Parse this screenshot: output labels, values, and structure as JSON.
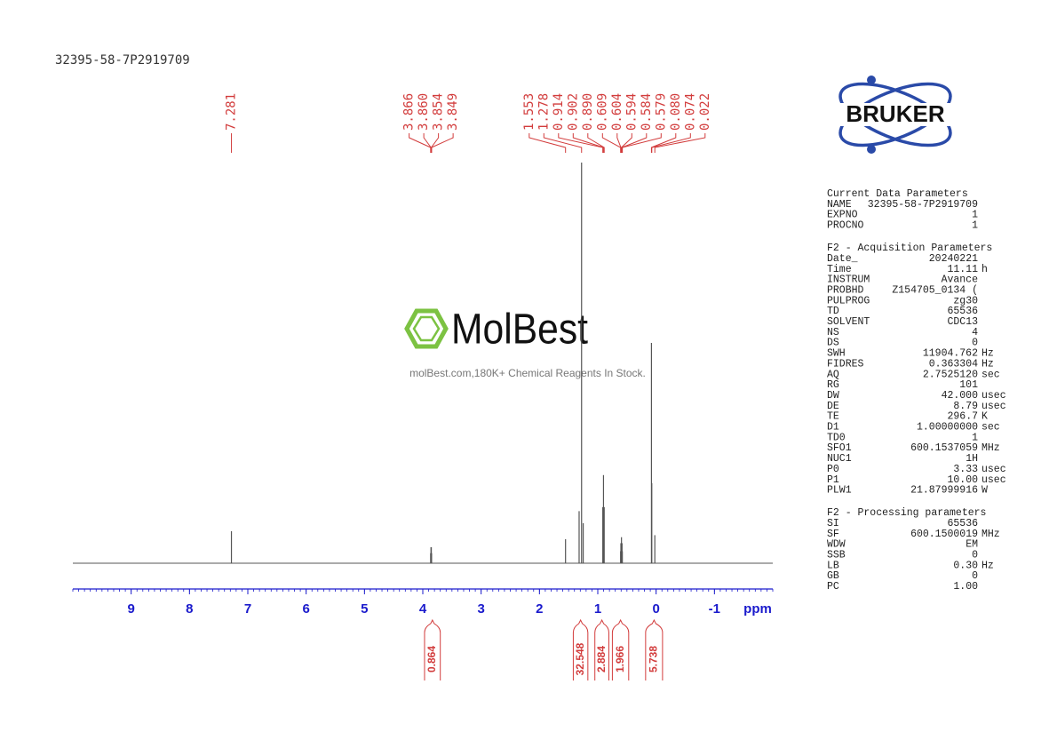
{
  "chart_data": {
    "type": "nmr",
    "title": "32395-58-7P2919709",
    "x_label": "ppm",
    "xlim": [
      10,
      -2
    ],
    "xticks": [
      9,
      8,
      7,
      6,
      5,
      4,
      3,
      2,
      1,
      0,
      -1
    ],
    "minor_tick_step": 0.1,
    "ylim": [
      0,
      100
    ],
    "axis_color": "#1a1acc",
    "spectrum": {
      "color": "#555555",
      "ppm": [
        7.281,
        3.866,
        3.86,
        3.854,
        3.849,
        1.553,
        1.32,
        1.278,
        1.25,
        0.914,
        0.902,
        0.89,
        0.609,
        0.604,
        0.594,
        0.584,
        0.579,
        0.08,
        0.074,
        0.022
      ],
      "intensity": [
        8,
        2.5,
        4,
        4,
        2.5,
        6,
        13,
        100,
        10,
        14,
        22,
        14,
        3,
        5,
        6.5,
        5,
        3,
        55,
        20,
        7
      ]
    },
    "peaks": {
      "color": "#d23c3c",
      "values": [
        7.281,
        3.866,
        3.86,
        3.854,
        3.849,
        1.553,
        1.278,
        0.914,
        0.902,
        0.89,
        0.609,
        0.604,
        0.594,
        0.584,
        0.579,
        0.08,
        0.074,
        0.022
      ],
      "value_labels": [
        "7.281",
        "3.866",
        "3.860",
        "3.854",
        "3.849",
        "1.553",
        "1.278",
        "0.914",
        "0.902",
        "0.890",
        "0.609",
        "0.604",
        "0.594",
        "0.584",
        "0.579",
        "0.080",
        "0.074",
        "0.022"
      ]
    },
    "integrals": {
      "color": "#d23c3c",
      "ranges": [
        [
          3.97,
          3.7
        ],
        [
          1.42,
          1.17
        ],
        [
          1.05,
          0.81
        ],
        [
          0.75,
          0.47
        ],
        [
          0.18,
          -0.11
        ]
      ],
      "values": [
        0.864,
        32.548,
        2.884,
        1.966,
        5.738
      ]
    }
  },
  "logo": {
    "text": "BRUKER"
  },
  "watermark": {
    "brand": "MolBest",
    "tagline": "molBest.com,180K+ Chemical Reagents In Stock."
  },
  "parameters": {
    "sections": [
      {
        "title": "Current Data Parameters",
        "rows": [
          {
            "name": "NAME",
            "value": "32395-58-7P2919709"
          },
          {
            "name": "EXPNO",
            "value": "1"
          },
          {
            "name": "PROCNO",
            "value": "1"
          }
        ]
      },
      {
        "title": "F2 - Acquisition Parameters",
        "rows": [
          {
            "name": "Date_",
            "value": "20240221"
          },
          {
            "name": "Time",
            "value": "11.11",
            "unit": "h"
          },
          {
            "name": "INSTRUM",
            "value": "Avance"
          },
          {
            "name": "PROBHD",
            "value": "Z154705_0134 ("
          },
          {
            "name": "PULPROG",
            "value": "zg30"
          },
          {
            "name": "TD",
            "value": "65536"
          },
          {
            "name": "SOLVENT",
            "value": "CDC13"
          },
          {
            "name": "NS",
            "value": "4"
          },
          {
            "name": "DS",
            "value": "0"
          },
          {
            "name": "SWH",
            "value": "11904.762",
            "unit": "Hz"
          },
          {
            "name": "FIDRES",
            "value": "0.363304",
            "unit": "Hz"
          },
          {
            "name": "AQ",
            "value": "2.7525120",
            "unit": "sec"
          },
          {
            "name": "RG",
            "value": "101"
          },
          {
            "name": "DW",
            "value": "42.000",
            "unit": "usec"
          },
          {
            "name": "DE",
            "value": "8.79",
            "unit": "usec"
          },
          {
            "name": "TE",
            "value": "296.7",
            "unit": "K"
          },
          {
            "name": "D1",
            "value": "1.00000000",
            "unit": "sec"
          },
          {
            "name": "TD0",
            "value": "1"
          },
          {
            "name": "SFO1",
            "value": "600.1537059",
            "unit": "MHz"
          },
          {
            "name": "NUC1",
            "value": "1H"
          },
          {
            "name": "P0",
            "value": "3.33",
            "unit": "usec"
          },
          {
            "name": "P1",
            "value": "10.00",
            "unit": "usec"
          },
          {
            "name": "PLW1",
            "value": "21.87999916",
            "unit": "W"
          }
        ]
      },
      {
        "title": "F2 - Processing parameters",
        "rows": [
          {
            "name": "SI",
            "value": "65536"
          },
          {
            "name": "SF",
            "value": "600.1500019",
            "unit": "MHz"
          },
          {
            "name": "WDW",
            "value": "EM"
          },
          {
            "name": "SSB",
            "value": "0"
          },
          {
            "name": "LB",
            "value": "0.30",
            "unit": "Hz"
          },
          {
            "name": "GB",
            "value": "0"
          },
          {
            "name": "PC",
            "value": "1.00"
          }
        ]
      }
    ]
  }
}
